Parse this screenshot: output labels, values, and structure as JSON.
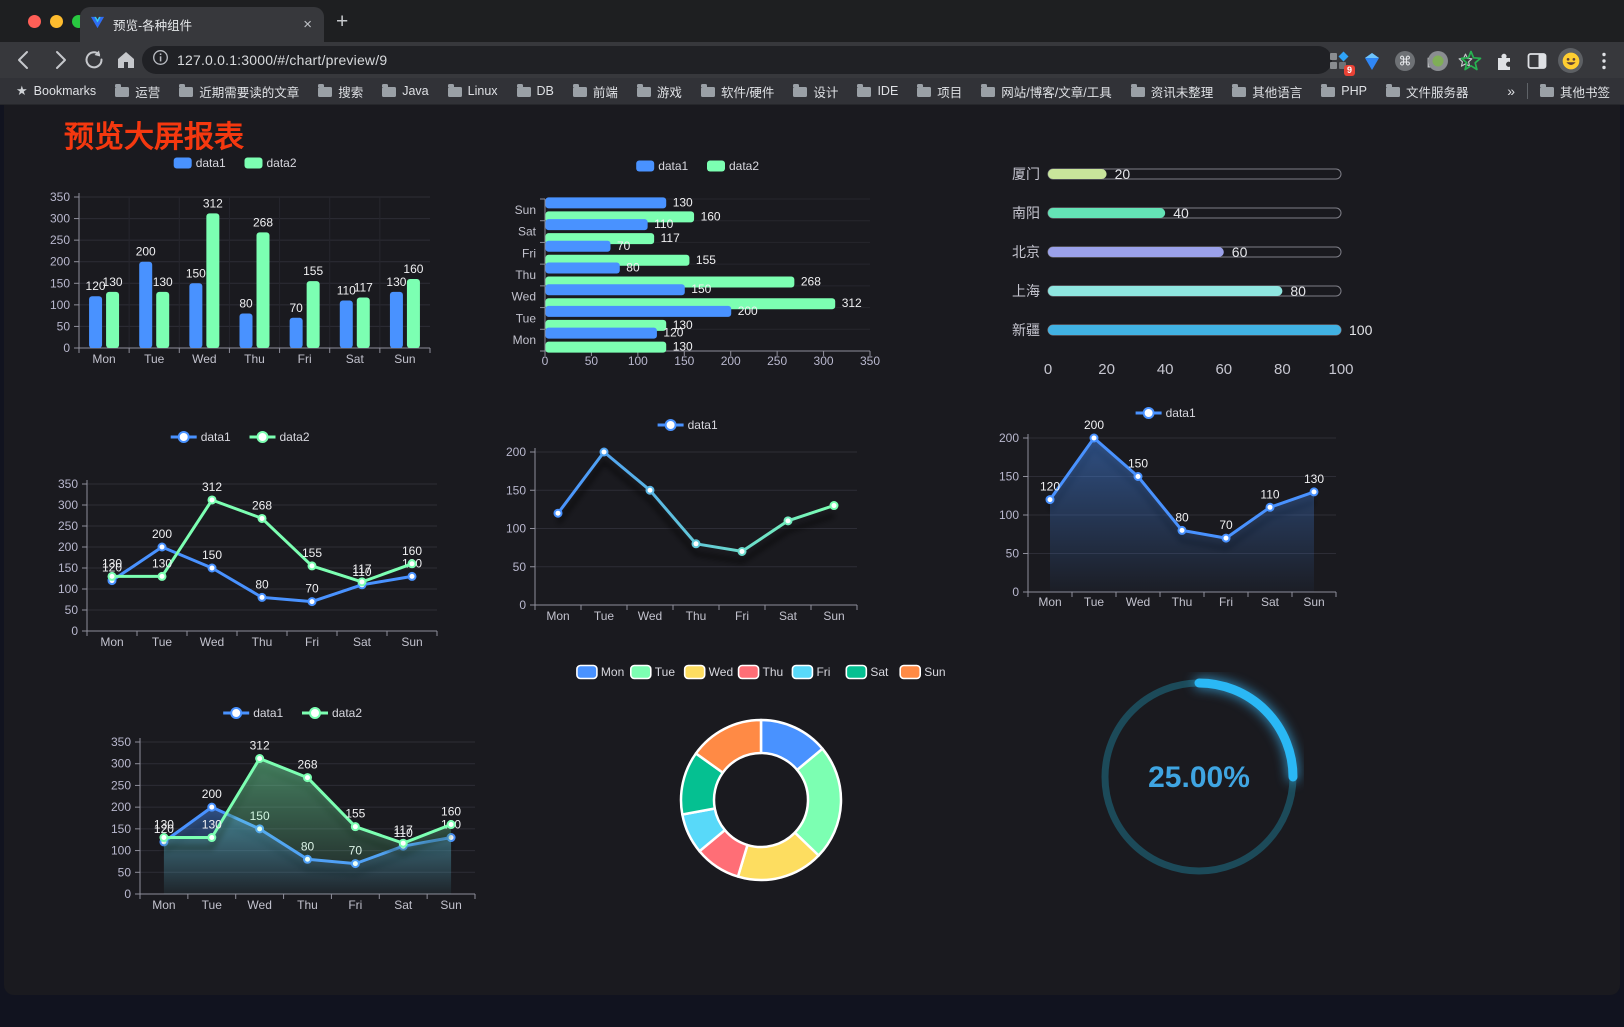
{
  "browser": {
    "tab_title": "预览-各种组件",
    "tab_close": "×",
    "new_tab": "+",
    "url": "127.0.0.1:3000/#/chart/preview/9",
    "bookmarks_label": "Bookmarks",
    "bookmarks": [
      "运营",
      "近期需要读的文章",
      "搜索",
      "Java",
      "Linux",
      "DB",
      "前端",
      "游戏",
      "软件/硬件",
      "设计",
      "IDE",
      "项目",
      "网站/博客/文章/工具",
      "资讯未整理",
      "其他语言",
      "PHP",
      "文件服务器"
    ],
    "overflow_chevron": "»",
    "other_bookmarks": "其他书签",
    "extension_badge": "9"
  },
  "page": {
    "title": "预览大屏报表",
    "title_color": "#f5380f"
  },
  "chart_data": [
    {
      "id": "bar-grouped",
      "type": "bar",
      "categories": [
        "Mon",
        "Tue",
        "Wed",
        "Thu",
        "Fri",
        "Sat",
        "Sun"
      ],
      "series": [
        {
          "name": "data1",
          "color": "#4992ff",
          "values": [
            120,
            200,
            150,
            80,
            70,
            110,
            130
          ]
        },
        {
          "name": "data2",
          "color": "#7cffb2",
          "values": [
            130,
            130,
            312,
            268,
            155,
            117,
            160
          ]
        }
      ],
      "ylim": [
        0,
        350
      ],
      "ystep": 50,
      "legend": true,
      "labels": true
    },
    {
      "id": "bar-horizontal",
      "type": "hbar",
      "categories": [
        "Mon",
        "Tue",
        "Wed",
        "Thu",
        "Fri",
        "Sat",
        "Sun"
      ],
      "series": [
        {
          "name": "data1",
          "color": "#4992ff",
          "values": [
            120,
            200,
            150,
            80,
            70,
            110,
            130
          ]
        },
        {
          "name": "data2",
          "color": "#7cffb2",
          "values": [
            130,
            130,
            312,
            268,
            155,
            117,
            160
          ]
        }
      ],
      "xlim": [
        0,
        350
      ],
      "xstep": 50,
      "legend": true,
      "labels": true
    },
    {
      "id": "city-progress",
      "type": "progress",
      "max": 100,
      "ticks": [
        0,
        20,
        40,
        60,
        80,
        100
      ],
      "items": [
        {
          "label": "厦门",
          "value": 20,
          "color": "#c9e59b"
        },
        {
          "label": "南阳",
          "value": 40,
          "color": "#64e3b6"
        },
        {
          "label": "北京",
          "value": 60,
          "color": "#9ba1ea"
        },
        {
          "label": "上海",
          "value": 80,
          "color": "#8fe6e0"
        },
        {
          "label": "新疆",
          "value": 100,
          "color": "#41b2e3"
        }
      ]
    },
    {
      "id": "line-dual",
      "type": "line",
      "categories": [
        "Mon",
        "Tue",
        "Wed",
        "Thu",
        "Fri",
        "Sat",
        "Sun"
      ],
      "series": [
        {
          "name": "data1",
          "color": "#4992ff",
          "values": [
            120,
            200,
            150,
            80,
            70,
            110,
            130
          ]
        },
        {
          "name": "data2",
          "color": "#7cffb2",
          "values": [
            130,
            130,
            312,
            268,
            155,
            117,
            160
          ]
        }
      ],
      "ylim": [
        0,
        350
      ],
      "ystep": 50,
      "legend": true,
      "labels": true
    },
    {
      "id": "line-gradient",
      "type": "line",
      "categories": [
        "Mon",
        "Tue",
        "Wed",
        "Thu",
        "Fri",
        "Sat",
        "Sun"
      ],
      "series": [
        {
          "name": "data1",
          "gradient": [
            "#4992ff",
            "#7cffb2"
          ],
          "values": [
            120,
            200,
            150,
            80,
            70,
            110,
            130
          ]
        }
      ],
      "ylim": [
        0,
        200
      ],
      "ystep": 50,
      "legend": true,
      "labels": false,
      "shadow": true
    },
    {
      "id": "line-area",
      "type": "line",
      "categories": [
        "Mon",
        "Tue",
        "Wed",
        "Thu",
        "Fri",
        "Sat",
        "Sun"
      ],
      "series": [
        {
          "name": "data1",
          "color": "#4992ff",
          "area": true,
          "values": [
            120,
            200,
            150,
            80,
            70,
            110,
            130
          ]
        }
      ],
      "ylim": [
        0,
        200
      ],
      "ystep": 50,
      "legend": true,
      "labels": true,
      "shadow": true
    },
    {
      "id": "line-area-dual",
      "type": "line",
      "categories": [
        "Mon",
        "Tue",
        "Wed",
        "Thu",
        "Fri",
        "Sat",
        "Sun"
      ],
      "series": [
        {
          "name": "data1",
          "color": "#4992ff",
          "area": true,
          "values": [
            120,
            200,
            150,
            80,
            70,
            110,
            130
          ]
        },
        {
          "name": "data2",
          "color": "#7cffb2",
          "area": true,
          "values": [
            130,
            130,
            312,
            268,
            155,
            117,
            160
          ]
        }
      ],
      "ylim": [
        0,
        350
      ],
      "ystep": 50,
      "legend": true,
      "labels": true,
      "shadow": true
    },
    {
      "id": "weekday-donut",
      "type": "pie",
      "items": [
        {
          "label": "Mon",
          "value": 120,
          "color": "#4992ff"
        },
        {
          "label": "Tue",
          "value": 200,
          "color": "#7cffb2"
        },
        {
          "label": "Wed",
          "value": 150,
          "color": "#fddd60"
        },
        {
          "label": "Thu",
          "value": 80,
          "color": "#ff6e76"
        },
        {
          "label": "Fri",
          "value": 70,
          "color": "#58d9f9"
        },
        {
          "label": "Sat",
          "value": 110,
          "color": "#05c091"
        },
        {
          "label": "Sun",
          "value": 130,
          "color": "#ff8a45"
        }
      ],
      "legend": true
    },
    {
      "id": "percent-gauge",
      "type": "gauge",
      "value": 25,
      "max": 100,
      "display": "25.00%",
      "color": "#2ab8f5",
      "track": "#1c4a59",
      "text_color": "#3fa5e2"
    }
  ]
}
